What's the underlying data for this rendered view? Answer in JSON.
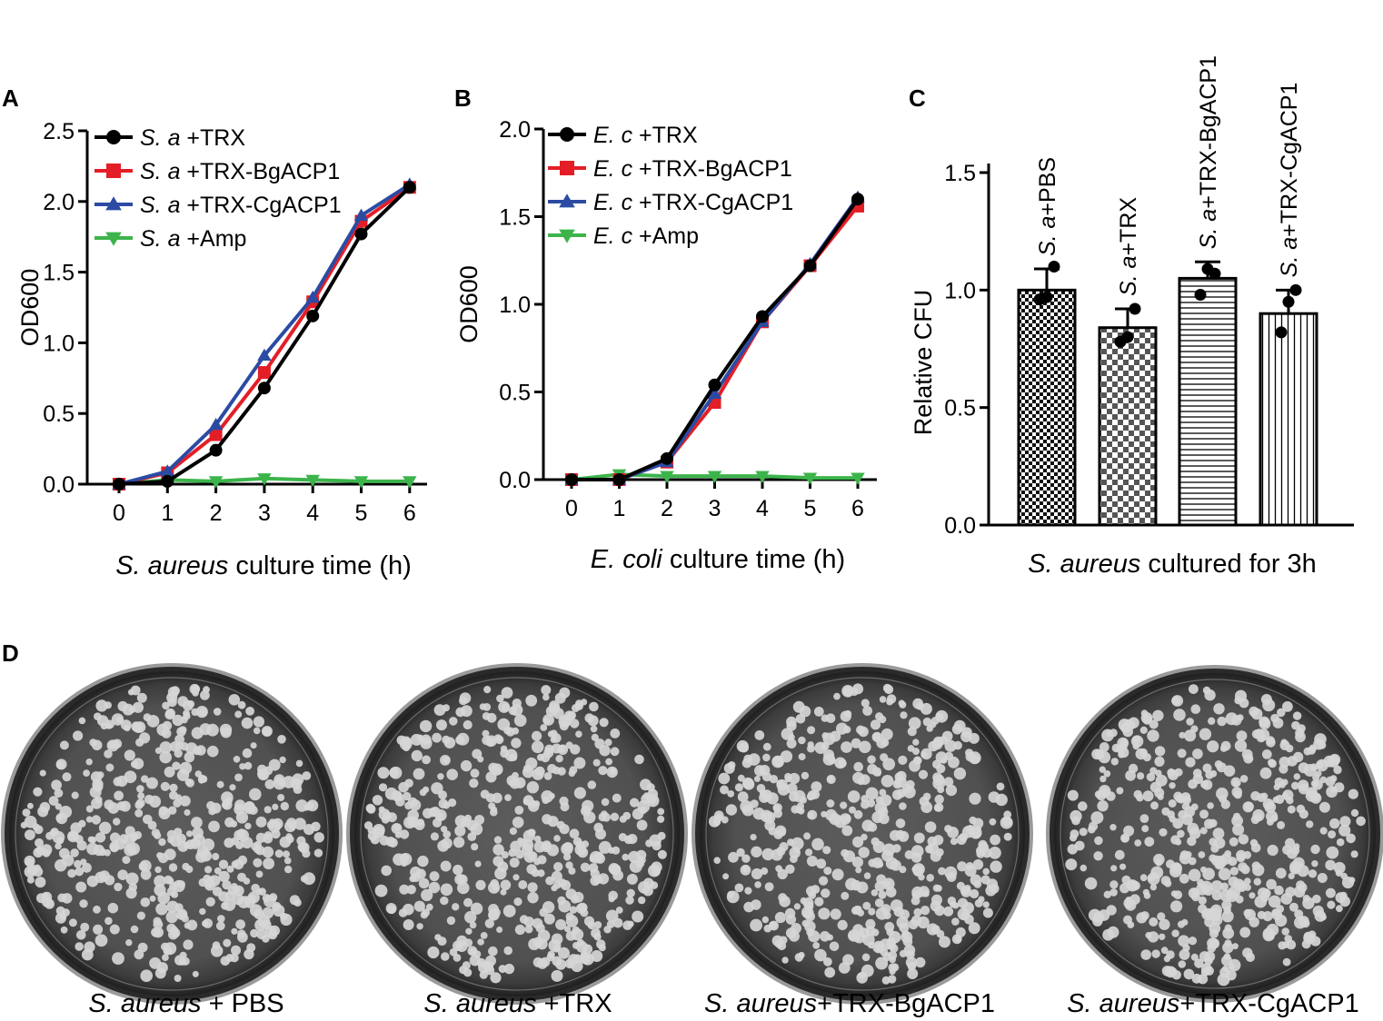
{
  "chart_data": [
    {
      "panel": "A",
      "type": "line",
      "ylabel": "OD600",
      "xlabel_italic": "S. aureus",
      "xlabel_rest": " culture time (h)",
      "x": [
        0,
        1,
        2,
        3,
        4,
        5,
        6
      ],
      "xticks": [
        "0",
        "1",
        "2",
        "3",
        "4",
        "5",
        "6"
      ],
      "yticks": [
        "0.0",
        "0.5",
        "1.0",
        "1.5",
        "2.0",
        "2.5"
      ],
      "ylim": [
        0,
        2.5
      ],
      "grid": false,
      "legend_position": "top-left",
      "series": [
        {
          "name_italic": "S. a",
          "name_rest": " +TRX",
          "marker": "circle",
          "color": "#000000",
          "values": [
            0.0,
            0.02,
            0.24,
            0.68,
            1.19,
            1.77,
            2.1
          ]
        },
        {
          "name_italic": "S. a",
          "name_rest": " +TRX-BgACP1",
          "marker": "square",
          "color": "#e41e26",
          "values": [
            0.0,
            0.08,
            0.35,
            0.79,
            1.29,
            1.86,
            2.1
          ]
        },
        {
          "name_italic": "S. a",
          "name_rest": " +TRX-CgACP1",
          "marker": "triangle-up",
          "color": "#2b4ba3",
          "values": [
            0.0,
            0.09,
            0.42,
            0.91,
            1.32,
            1.9,
            2.12
          ]
        },
        {
          "name_italic": "S. a",
          "name_rest": " +Amp",
          "marker": "triangle-down",
          "color": "#3cb44b",
          "values": [
            0.0,
            0.03,
            0.02,
            0.04,
            0.03,
            0.02,
            0.02
          ]
        }
      ]
    },
    {
      "panel": "B",
      "type": "line",
      "ylabel": "OD600",
      "xlabel_italic": "E. coli",
      "xlabel_rest": " culture time (h)",
      "x": [
        0,
        1,
        2,
        3,
        4,
        5,
        6
      ],
      "xticks": [
        "0",
        "1",
        "2",
        "3",
        "4",
        "5",
        "6"
      ],
      "yticks": [
        "0.0",
        "0.5",
        "1.0",
        "1.5",
        "2.0"
      ],
      "ylim": [
        0,
        2.0
      ],
      "grid": false,
      "legend_position": "top-left",
      "series": [
        {
          "name_italic": "E. c",
          "name_rest": " +TRX",
          "marker": "circle",
          "color": "#000000",
          "values": [
            0.0,
            0.0,
            0.12,
            0.54,
            0.93,
            1.22,
            1.6
          ]
        },
        {
          "name_italic": "E. c",
          "name_rest": " +TRX-BgACP1",
          "marker": "square",
          "color": "#e41e26",
          "values": [
            0.0,
            0.0,
            0.1,
            0.44,
            0.9,
            1.22,
            1.56
          ]
        },
        {
          "name_italic": "E. c",
          "name_rest": " +TRX-CgACP1",
          "marker": "triangle-up",
          "color": "#2b4ba3",
          "values": [
            0.0,
            0.0,
            0.1,
            0.49,
            0.9,
            1.23,
            1.61
          ]
        },
        {
          "name_italic": "E. c",
          "name_rest": " +Amp",
          "marker": "triangle-down",
          "color": "#3cb44b",
          "values": [
            0.0,
            0.03,
            0.02,
            0.02,
            0.02,
            0.01,
            0.01
          ]
        }
      ]
    },
    {
      "panel": "C",
      "type": "bar",
      "ylabel": "Relative CFU",
      "xlabel_italic": "S. aureus",
      "xlabel_rest": " cultured for 3h",
      "yticks": [
        "0.0",
        "0.5",
        "1.0",
        "1.5"
      ],
      "ylim": [
        0,
        1.5
      ],
      "grid": false,
      "categories": [
        {
          "italic": "S. a",
          "rest": "+PBS"
        },
        {
          "italic": "S. a",
          "rest": "+TRX"
        },
        {
          "italic": "S. a",
          "rest": "+TRX-BgACP1"
        },
        {
          "italic": "S. a",
          "rest": "+TRX-CgACP1"
        }
      ],
      "values": [
        1.0,
        0.84,
        1.05,
        0.9
      ],
      "errors": [
        0.09,
        0.08,
        0.07,
        0.1
      ],
      "points": [
        [
          0.96,
          0.97,
          1.1
        ],
        [
          0.78,
          0.8,
          0.92
        ],
        [
          0.98,
          1.09,
          1.07
        ],
        [
          0.82,
          0.95,
          1.0
        ]
      ],
      "patterns": [
        "dense-checker",
        "checker",
        "horizontal-lines",
        "vertical-lines"
      ]
    }
  ],
  "panel_labels": {
    "a": "A",
    "b": "B",
    "c": "C",
    "d": "D"
  },
  "plates": [
    {
      "italic": "S. aureus",
      "rest": " + PBS"
    },
    {
      "italic": "S. aureus",
      "rest": " +TRX"
    },
    {
      "italic": "S. aureus",
      "rest": "+TRX-BgACP1"
    },
    {
      "italic": "S. aureus",
      "rest": "+TRX-CgACP1"
    }
  ]
}
